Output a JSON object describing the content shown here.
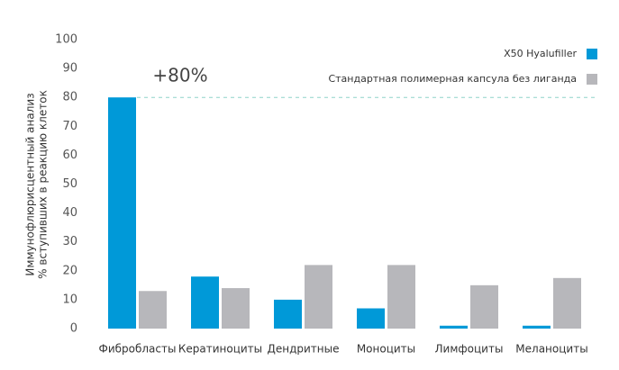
{
  "chart_data": {
    "type": "bar",
    "y_label": [
      "Иммунофлюрисцентный анализ",
      "% вступивших в реакцию клеток"
    ],
    "categories": [
      "Фибробласты",
      "Кератиноциты",
      "Дендритные",
      "Моноциты",
      "Лимфоциты",
      "Меланоциты"
    ],
    "series": [
      {
        "name": "X50 Hyalufiller",
        "color": "#0099d8",
        "values": [
          80,
          18,
          10,
          7,
          1,
          1
        ]
      },
      {
        "name": "Стандартная полимерная капсула без лиганда",
        "color": "#b7b7bb",
        "values": [
          13,
          14,
          22,
          22,
          15,
          17.5
        ]
      }
    ],
    "ylim": [
      0,
      100
    ],
    "yticks": [
      0,
      10,
      20,
      30,
      40,
      50,
      60,
      70,
      80,
      90,
      100
    ],
    "grid": false,
    "legend": "top-right",
    "annotation": {
      "text": "+80%",
      "value": 80
    }
  }
}
